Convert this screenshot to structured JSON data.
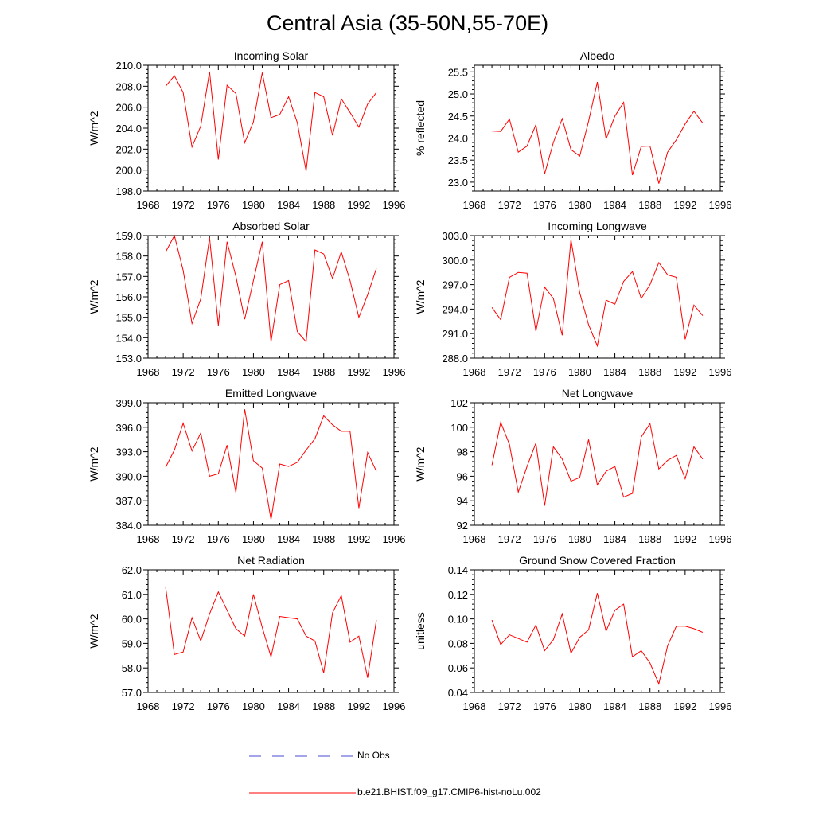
{
  "page": {
    "title": "Central Asia (35-50N,55-70E)"
  },
  "legend": {
    "items": [
      {
        "label": "No Obs",
        "color": "#4a4ad0",
        "style": "dashed"
      },
      {
        "label": "b.e21.BHIST.f09_g17.CMIP6-hist-noLu.002",
        "color": "#ff0000",
        "style": "solid"
      }
    ]
  },
  "chart_data": [
    {
      "type": "line",
      "title": "Incoming Solar",
      "xlabel": "",
      "ylabel": "W/m^2",
      "xlim": [
        1968,
        1996
      ],
      "ylim": [
        198,
        210
      ],
      "x_ticks": [
        1968,
        1972,
        1976,
        1980,
        1984,
        1988,
        1992,
        1996
      ],
      "y_ticks": [
        198,
        200,
        202,
        204,
        206,
        208,
        210
      ],
      "y_tick_labels": [
        "198.0",
        "200.0",
        "202.0",
        "204.0",
        "206.0",
        "208.0",
        "210.0"
      ],
      "series": [
        {
          "color": "#ff0000",
          "x": [
            1970,
            1971,
            1972,
            1973,
            1974,
            1975,
            1976,
            1977,
            1978,
            1979,
            1980,
            1981,
            1982,
            1983,
            1984,
            1985,
            1986,
            1987,
            1988,
            1989,
            1990,
            1991,
            1992,
            1993,
            1994
          ],
          "values": [
            208.0,
            209.0,
            207.4,
            202.2,
            204.2,
            209.4,
            201.0,
            208.1,
            207.3,
            202.6,
            204.6,
            209.3,
            205.0,
            205.3,
            207.0,
            204.5,
            199.9,
            207.4,
            207.0,
            203.3,
            206.8,
            205.5,
            204.1,
            206.3,
            207.4
          ]
        }
      ]
    },
    {
      "type": "line",
      "title": "Albedo",
      "xlabel": "",
      "ylabel": "% reflected",
      "xlim": [
        1968,
        1996
      ],
      "ylim": [
        22.8,
        25.65
      ],
      "x_ticks": [
        1968,
        1972,
        1976,
        1980,
        1984,
        1988,
        1992,
        1996
      ],
      "y_ticks": [
        23.0,
        23.5,
        24.0,
        24.5,
        25.0,
        25.5
      ],
      "y_tick_labels": [
        "23.0",
        "23.5",
        "24.0",
        "24.5",
        "25.0",
        "25.5"
      ],
      "series": [
        {
          "color": "#ff0000",
          "x": [
            1970,
            1971,
            1972,
            1973,
            1974,
            1975,
            1976,
            1977,
            1978,
            1979,
            1980,
            1981,
            1982,
            1983,
            1984,
            1985,
            1986,
            1987,
            1988,
            1989,
            1990,
            1991,
            1992,
            1993,
            1994
          ],
          "values": [
            24.16,
            24.15,
            24.43,
            23.68,
            23.82,
            24.3,
            23.19,
            23.9,
            24.44,
            23.74,
            23.59,
            24.38,
            25.27,
            23.98,
            24.5,
            24.81,
            23.16,
            23.81,
            23.82,
            22.97,
            23.68,
            23.96,
            24.32,
            24.61,
            24.34
          ]
        }
      ]
    },
    {
      "type": "line",
      "title": "Absorbed Solar",
      "xlabel": "",
      "ylabel": "W/m^2",
      "xlim": [
        1968,
        1996
      ],
      "ylim": [
        153,
        159
      ],
      "x_ticks": [
        1968,
        1972,
        1976,
        1980,
        1984,
        1988,
        1992,
        1996
      ],
      "y_ticks": [
        153,
        154,
        155,
        156,
        157,
        158,
        159
      ],
      "y_tick_labels": [
        "153.0",
        "154.0",
        "155.0",
        "156.0",
        "157.0",
        "158.0",
        "159.0"
      ],
      "series": [
        {
          "color": "#ff0000",
          "x": [
            1970,
            1971,
            1972,
            1973,
            1974,
            1975,
            1976,
            1977,
            1978,
            1979,
            1980,
            1981,
            1982,
            1983,
            1984,
            1985,
            1986,
            1987,
            1988,
            1989,
            1990,
            1991,
            1992,
            1993,
            1994
          ],
          "values": [
            158.2,
            159.0,
            157.3,
            154.7,
            155.9,
            158.9,
            154.6,
            158.7,
            157.0,
            154.9,
            156.8,
            158.7,
            153.8,
            156.6,
            156.8,
            154.3,
            153.8,
            158.3,
            158.1,
            156.9,
            158.2,
            156.8,
            155.0,
            156.1,
            157.4
          ]
        }
      ]
    },
    {
      "type": "line",
      "title": "Incoming Longwave",
      "xlabel": "",
      "ylabel": "W/m^2",
      "xlim": [
        1968,
        1996
      ],
      "ylim": [
        288,
        303
      ],
      "x_ticks": [
        1968,
        1972,
        1976,
        1980,
        1984,
        1988,
        1992,
        1996
      ],
      "y_ticks": [
        288,
        291,
        294,
        297,
        300,
        303
      ],
      "y_tick_labels": [
        "288.0",
        "291.0",
        "294.0",
        "297.0",
        "300.0",
        "303.0"
      ],
      "series": [
        {
          "color": "#ff0000",
          "x": [
            1970,
            1971,
            1972,
            1973,
            1974,
            1975,
            1976,
            1977,
            1978,
            1979,
            1980,
            1981,
            1982,
            1983,
            1984,
            1985,
            1986,
            1987,
            1988,
            1989,
            1990,
            1991,
            1992,
            1993,
            1994
          ],
          "values": [
            294.2,
            292.7,
            297.9,
            298.5,
            298.4,
            291.3,
            296.7,
            295.3,
            290.8,
            302.5,
            296.0,
            292.1,
            289.5,
            295.1,
            294.6,
            297.4,
            298.6,
            295.3,
            297.0,
            299.7,
            298.2,
            297.9,
            290.3,
            294.5,
            293.2
          ]
        }
      ]
    },
    {
      "type": "line",
      "title": "Emitted Longwave",
      "xlabel": "",
      "ylabel": "W/m^2",
      "xlim": [
        1968,
        1996
      ],
      "ylim": [
        384,
        399
      ],
      "x_ticks": [
        1968,
        1972,
        1976,
        1980,
        1984,
        1988,
        1992,
        1996
      ],
      "y_ticks": [
        384,
        387,
        390,
        393,
        396,
        399
      ],
      "y_tick_labels": [
        "384.0",
        "387.0",
        "390.0",
        "393.0",
        "396.0",
        "399.0"
      ],
      "series": [
        {
          "color": "#ff0000",
          "x": [
            1970,
            1971,
            1972,
            1973,
            1974,
            1975,
            1976,
            1977,
            1978,
            1979,
            1980,
            1981,
            1982,
            1983,
            1984,
            1985,
            1986,
            1987,
            1988,
            1989,
            1990,
            1991,
            1992,
            1993,
            1994
          ],
          "values": [
            391.1,
            393.2,
            396.5,
            393.1,
            395.3,
            390.0,
            390.3,
            393.8,
            388.0,
            398.2,
            391.9,
            391.0,
            384.7,
            391.5,
            391.2,
            391.7,
            393.2,
            394.6,
            397.4,
            396.3,
            395.5,
            395.5,
            386.1,
            392.9,
            390.6
          ]
        }
      ]
    },
    {
      "type": "line",
      "title": "Net Longwave",
      "xlabel": "",
      "ylabel": "W/m^2",
      "xlim": [
        1968,
        1996
      ],
      "ylim": [
        92,
        102
      ],
      "x_ticks": [
        1968,
        1972,
        1976,
        1980,
        1984,
        1988,
        1992,
        1996
      ],
      "y_ticks": [
        92,
        94,
        96,
        98,
        100,
        102
      ],
      "y_tick_labels": [
        "92",
        "94",
        "96",
        "98",
        "100",
        "102"
      ],
      "series": [
        {
          "color": "#ff0000",
          "x": [
            1970,
            1971,
            1972,
            1973,
            1974,
            1975,
            1976,
            1977,
            1978,
            1979,
            1980,
            1981,
            1982,
            1983,
            1984,
            1985,
            1986,
            1987,
            1988,
            1989,
            1990,
            1991,
            1992,
            1993,
            1994
          ],
          "values": [
            96.9,
            100.4,
            98.6,
            94.7,
            96.8,
            98.7,
            93.6,
            98.4,
            97.4,
            95.6,
            95.9,
            99.0,
            95.3,
            96.4,
            96.8,
            94.3,
            94.6,
            99.2,
            100.3,
            96.6,
            97.3,
            97.7,
            95.8,
            98.4,
            97.4
          ]
        }
      ]
    },
    {
      "type": "line",
      "title": "Net Radiation",
      "xlabel": "",
      "ylabel": "W/m^2",
      "xlim": [
        1968,
        1996
      ],
      "ylim": [
        57,
        62
      ],
      "x_ticks": [
        1968,
        1972,
        1976,
        1980,
        1984,
        1988,
        1992,
        1996
      ],
      "y_ticks": [
        57,
        58,
        59,
        60,
        61,
        62
      ],
      "y_tick_labels": [
        "57.0",
        "58.0",
        "59.0",
        "60.0",
        "61.0",
        "62.0"
      ],
      "series": [
        {
          "color": "#ff0000",
          "x": [
            1970,
            1971,
            1972,
            1973,
            1974,
            1975,
            1976,
            1977,
            1978,
            1979,
            1980,
            1981,
            1982,
            1983,
            1984,
            1985,
            1986,
            1987,
            1988,
            1989,
            1990,
            1991,
            1992,
            1993,
            1994
          ],
          "values": [
            61.3,
            58.55,
            58.65,
            60.05,
            59.1,
            60.2,
            61.1,
            60.35,
            59.6,
            59.3,
            61.0,
            59.65,
            58.45,
            60.1,
            60.05,
            60.0,
            59.3,
            59.1,
            57.8,
            60.25,
            60.95,
            59.05,
            59.3,
            57.6,
            59.95
          ]
        }
      ]
    },
    {
      "type": "line",
      "title": "Ground Snow Covered Fraction",
      "xlabel": "",
      "ylabel": "unitless",
      "xlim": [
        1968,
        1996
      ],
      "ylim": [
        0.04,
        0.14
      ],
      "x_ticks": [
        1968,
        1972,
        1976,
        1980,
        1984,
        1988,
        1992,
        1996
      ],
      "y_ticks": [
        0.04,
        0.06,
        0.08,
        0.1,
        0.12,
        0.14
      ],
      "y_tick_labels": [
        "0.04",
        "0.06",
        "0.08",
        "0.10",
        "0.12",
        "0.14"
      ],
      "series": [
        {
          "color": "#ff0000",
          "x": [
            1970,
            1971,
            1972,
            1973,
            1974,
            1975,
            1976,
            1977,
            1978,
            1979,
            1980,
            1981,
            1982,
            1983,
            1984,
            1985,
            1986,
            1987,
            1988,
            1989,
            1990,
            1991,
            1992,
            1993,
            1994
          ],
          "values": [
            0.099,
            0.079,
            0.087,
            0.084,
            0.081,
            0.095,
            0.074,
            0.083,
            0.104,
            0.072,
            0.085,
            0.091,
            0.121,
            0.09,
            0.107,
            0.112,
            0.069,
            0.074,
            0.064,
            0.047,
            0.078,
            0.094,
            0.094,
            0.092,
            0.089
          ]
        }
      ]
    }
  ]
}
